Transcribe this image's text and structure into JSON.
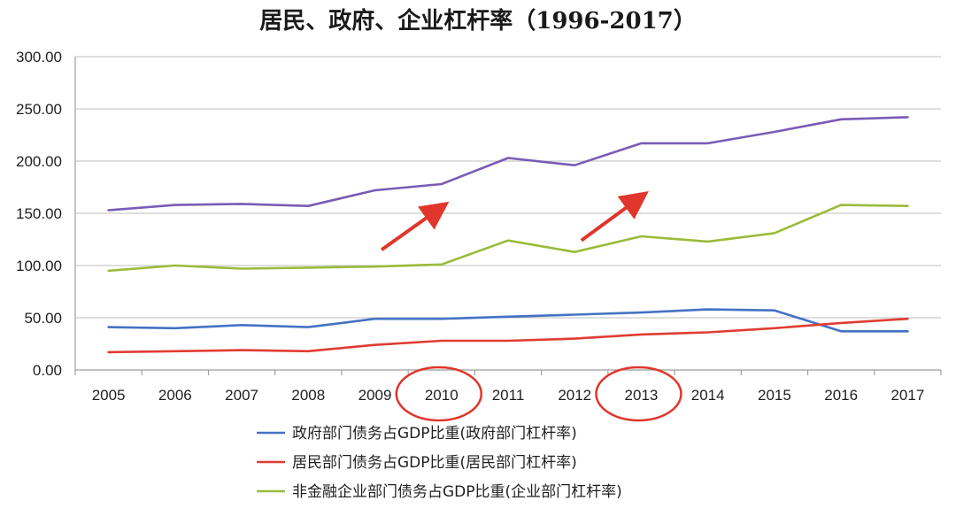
{
  "chart_data": {
    "type": "line",
    "title": "居民、政府、企业杠杆率（1996-2017）",
    "categories": [
      "2005",
      "2006",
      "2007",
      "2008",
      "2009",
      "2010",
      "2011",
      "2012",
      "2013",
      "2014",
      "2015",
      "2016",
      "2017"
    ],
    "ylim": [
      0,
      300
    ],
    "yticks": [
      "0.00",
      "50.00",
      "100.00",
      "150.00",
      "200.00",
      "250.00",
      "300.00"
    ],
    "grid": true,
    "legend_placement": "bottom",
    "series": [
      {
        "name": "政府部门债务占GDP比重(政府部门杠杆率)",
        "color": "#4472c4",
        "values": [
          41,
          40,
          43,
          41,
          49,
          49,
          51,
          53,
          55,
          58,
          57,
          37,
          37
        ]
      },
      {
        "name": "居民部门债务占GDP比重(居民部门杠杆率)",
        "color": "#e03c31",
        "values": [
          17,
          18,
          19,
          18,
          24,
          28,
          28,
          30,
          34,
          36,
          40,
          45,
          49
        ]
      },
      {
        "name": "非金融企业部门债务占GDP比重(企业部门杠杆率)",
        "color": "#9bbb3b",
        "values": [
          95,
          100,
          97,
          98,
          99,
          101,
          124,
          113,
          128,
          123,
          131,
          158,
          157
        ]
      },
      {
        "color": "#7a5bb5",
        "values": [
          153,
          158,
          159,
          157,
          172,
          178,
          203,
          196,
          217,
          217,
          228,
          240,
          242
        ]
      }
    ],
    "annotations": {
      "circled_years": [
        "2010",
        "2013"
      ],
      "arrows": [
        "up-right near 2010-2011",
        "up-right near 2012-2013"
      ],
      "circle_color": "#e0362b"
    }
  }
}
